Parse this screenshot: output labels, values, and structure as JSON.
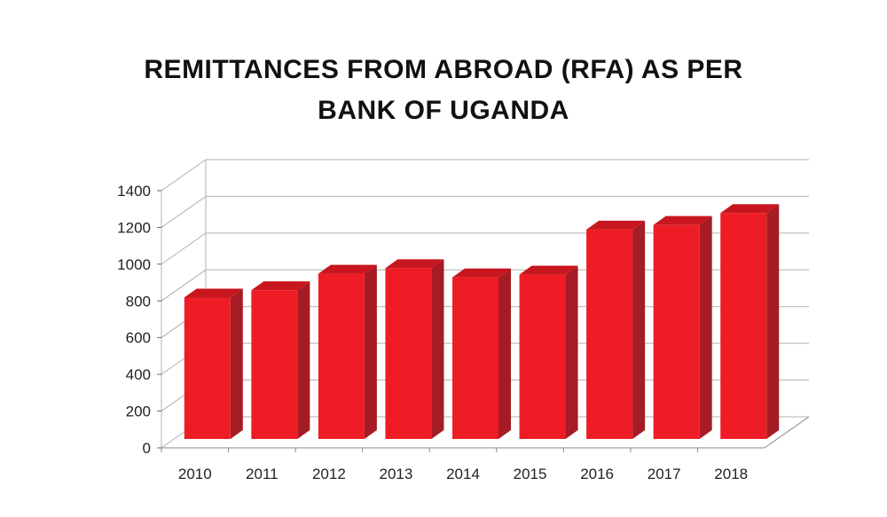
{
  "chart_data": {
    "type": "bar",
    "title_line1": "REMITTANCES FROM ABROAD (RFA) AS PER",
    "title_line2": "BANK OF UGANDA",
    "categories": [
      "2010",
      "2011",
      "2012",
      "2013",
      "2014",
      "2015",
      "2016",
      "2017",
      "2018"
    ],
    "series": [
      {
        "values": [
          770,
          810,
          900,
          930,
          880,
          895,
          1140,
          1165,
          1230
        ]
      }
    ],
    "ylim": [
      0,
      1400
    ],
    "yticks": [
      "0",
      "200",
      "400",
      "600",
      "800",
      "1000",
      "1200",
      "1400"
    ],
    "grid": true,
    "style": "3d-column",
    "colors": {
      "bar_front": "#ee1c25",
      "bar_side": "#a51c24",
      "bar_top": "#c8161e",
      "grid": "#b0b0b0",
      "text": "#222222"
    }
  }
}
